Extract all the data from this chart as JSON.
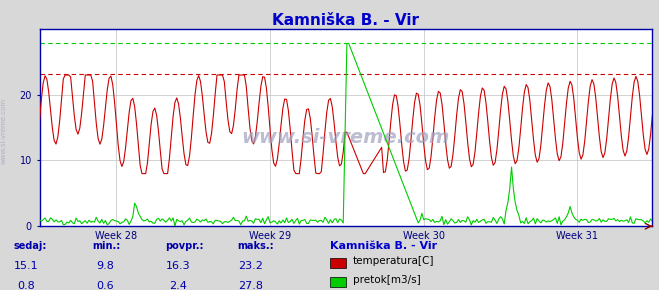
{
  "title": "Kamniška B. - Vir",
  "title_color": "#0000cc",
  "bg_color": "#d8d8d8",
  "plot_bg_color": "#ffffff",
  "grid_color": "#c0c0c0",
  "x_label_color": "#000080",
  "watermark": "www.si-vreme.com",
  "weeks": [
    "Week 28",
    "Week 29",
    "Week 30",
    "Week 31"
  ],
  "ylim": [
    0,
    30
  ],
  "yticks": [
    0,
    10,
    20
  ],
  "temp_color": "#cc0000",
  "flow_color": "#00cc00",
  "temp_max_line": 23.2,
  "flow_max_line": 27.8,
  "temp_max_color": "#cc0000",
  "flow_max_color": "#00cc00",
  "axis_color": "#0000aa",
  "bottom_bg": "#dce8f0",
  "legend_title": "Kamniška B. - Vir",
  "legend_title_color": "#0000cc",
  "table_header": [
    "sedaj:",
    "min.:",
    "povpr.:",
    "maks.:"
  ],
  "table_col1": [
    15.1,
    0.8
  ],
  "table_col2": [
    9.8,
    0.6
  ],
  "table_col3": [
    16.3,
    2.4
  ],
  "table_col4": [
    23.2,
    27.8
  ],
  "legend_labels": [
    "temperatura[C]",
    "pretok[m3/s]"
  ],
  "n_points": 336
}
